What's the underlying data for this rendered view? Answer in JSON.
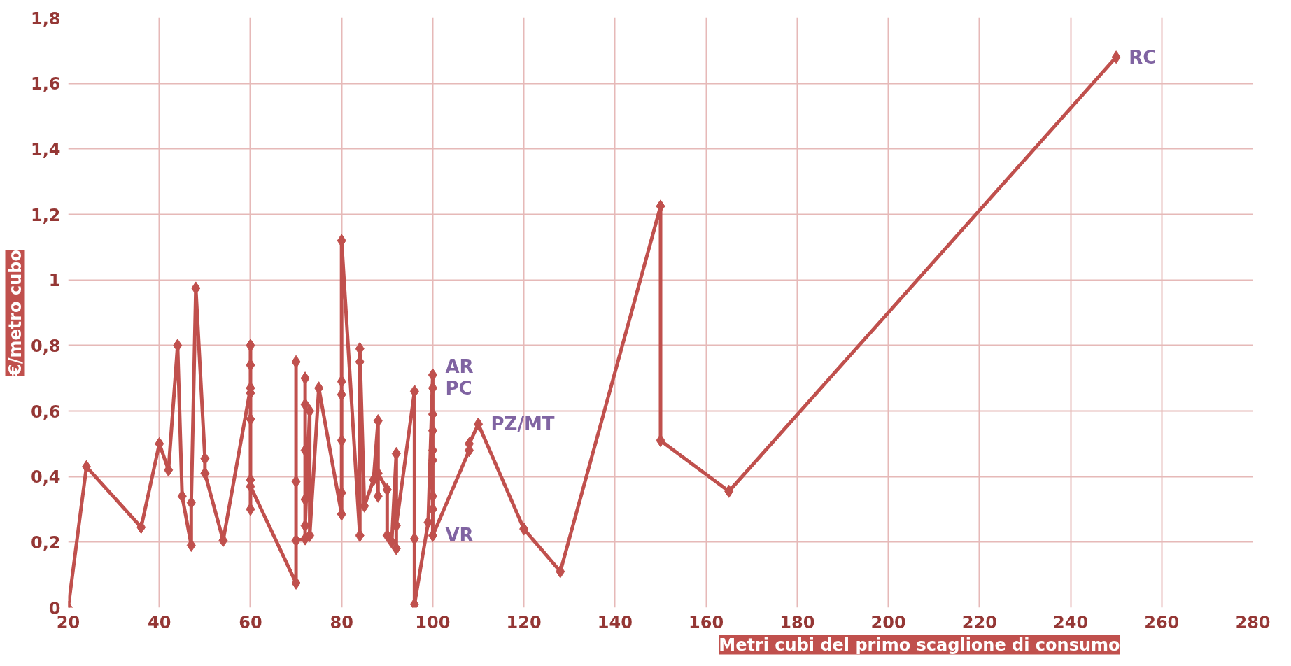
{
  "chart_data": {
    "type": "line",
    "xlabel": "Metri cubi del primo scaglione di consumo",
    "ylabel": "€/metro cubo",
    "x": [
      20,
      24,
      36,
      40,
      42,
      44,
      45,
      47,
      47,
      48,
      50,
      50,
      54,
      60,
      60,
      60,
      60,
      60,
      60,
      60,
      60,
      70,
      70,
      70,
      70,
      72,
      72,
      72,
      72,
      72,
      72,
      73,
      73,
      75,
      80,
      80,
      80,
      80,
      80,
      80,
      84,
      84,
      84,
      85,
      87,
      88,
      88,
      88,
      90,
      90,
      91,
      92,
      92,
      92,
      96,
      96,
      96,
      99,
      100,
      100,
      100,
      100,
      100,
      100,
      100,
      100,
      100,
      108,
      108,
      110,
      120,
      128,
      150,
      150,
      165,
      250
    ],
    "series": [
      {
        "color": "#c0504d",
        "values": [
          0,
          0.43,
          0.245,
          0.5,
          0.42,
          0.8,
          0.34,
          0.19,
          0.32,
          0.975,
          0.455,
          0.41,
          0.205,
          0.67,
          0.8,
          0.74,
          0.655,
          0.575,
          0.39,
          0.3,
          0.37,
          0.075,
          0.75,
          0.385,
          0.205,
          0.21,
          0.7,
          0.62,
          0.48,
          0.33,
          0.25,
          0.6,
          0.22,
          0.67,
          0.285,
          0.35,
          0.51,
          0.65,
          0.69,
          1.12,
          0.22,
          0.75,
          0.79,
          0.31,
          0.39,
          0.57,
          0.34,
          0.41,
          0.36,
          0.22,
          0.2,
          0.47,
          0.18,
          0.25,
          0.66,
          0.21,
          0.01,
          0.26,
          0.71,
          0.67,
          0.59,
          0.54,
          0.48,
          0.45,
          0.34,
          0.3,
          0.22,
          0.48,
          0.5,
          0.56,
          0.24,
          0.11,
          1.225,
          0.51,
          0.355,
          1.68
        ]
      }
    ],
    "xlim": [
      20,
      280
    ],
    "xticks": [
      20,
      40,
      60,
      80,
      100,
      120,
      140,
      160,
      180,
      200,
      220,
      240,
      260,
      280
    ],
    "ylim": [
      0,
      1.8
    ],
    "yticks": [
      0,
      {
        "value": 0.2,
        "label": "0,2"
      },
      {
        "value": 0.4,
        "label": "0,4"
      },
      {
        "value": 0.6,
        "label": "0,6"
      },
      {
        "value": 0.8,
        "label": "0,8"
      },
      1,
      {
        "value": 1.2,
        "label": "1,2"
      },
      {
        "value": 1.4,
        "label": "1,4"
      },
      {
        "value": 1.6,
        "label": "1,6"
      },
      {
        "value": 1.8,
        "label": "1,8"
      }
    ],
    "grid": true,
    "marker": "diamond",
    "line_style": "solid",
    "annotations": [
      {
        "text": "RC",
        "x": 250,
        "y": 1.68
      },
      {
        "text": "AR",
        "x": 100,
        "y": 0.71
      },
      {
        "text": "PC",
        "x": 100,
        "y": 0.67
      },
      {
        "text": "PZ/MT",
        "x": 110,
        "y": 0.56
      },
      {
        "text": "VR",
        "x": 100,
        "y": 0.22
      }
    ]
  }
}
